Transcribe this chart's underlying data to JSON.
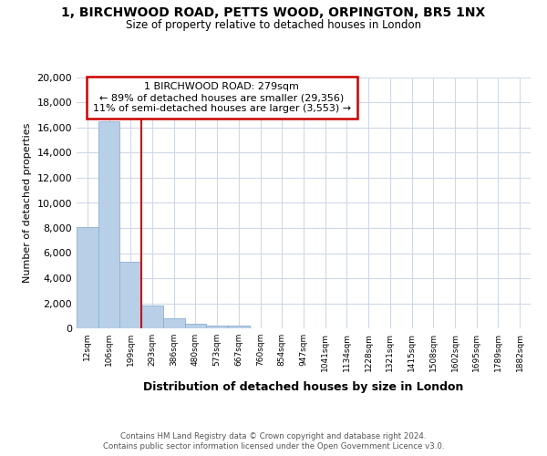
{
  "title_line1": "1, BIRCHWOOD ROAD, PETTS WOOD, ORPINGTON, BR5 1NX",
  "title_line2": "Size of property relative to detached houses in London",
  "xlabel": "Distribution of detached houses by size in London",
  "ylabel": "Number of detached properties",
  "footer_line1": "Contains HM Land Registry data © Crown copyright and database right 2024.",
  "footer_line2": "Contains public sector information licensed under the Open Government Licence v3.0.",
  "annotation_line1": "1 BIRCHWOOD ROAD: 279sqm",
  "annotation_line2": "← 89% of detached houses are smaller (29,356)",
  "annotation_line3": "11% of semi-detached houses are larger (3,553) →",
  "bar_color": "#b8cfe8",
  "bar_edge_color": "#8ab0d0",
  "redline_color": "#cc0000",
  "background_color": "#ffffff",
  "grid_color": "#d0d8e8",
  "categories": [
    "12sqm",
    "106sqm",
    "199sqm",
    "293sqm",
    "386sqm",
    "480sqm",
    "573sqm",
    "667sqm",
    "760sqm",
    "854sqm",
    "947sqm",
    "1041sqm",
    "1134sqm",
    "1228sqm",
    "1321sqm",
    "1415sqm",
    "1508sqm",
    "1602sqm",
    "1695sqm",
    "1789sqm",
    "1882sqm"
  ],
  "values": [
    8050,
    16500,
    5300,
    1850,
    800,
    350,
    220,
    200,
    0,
    0,
    0,
    0,
    0,
    0,
    0,
    0,
    0,
    0,
    0,
    0,
    0
  ],
  "ylim": [
    0,
    20000
  ],
  "yticks": [
    0,
    2000,
    4000,
    6000,
    8000,
    10000,
    12000,
    14000,
    16000,
    18000,
    20000
  ],
  "redline_x": 2.5
}
